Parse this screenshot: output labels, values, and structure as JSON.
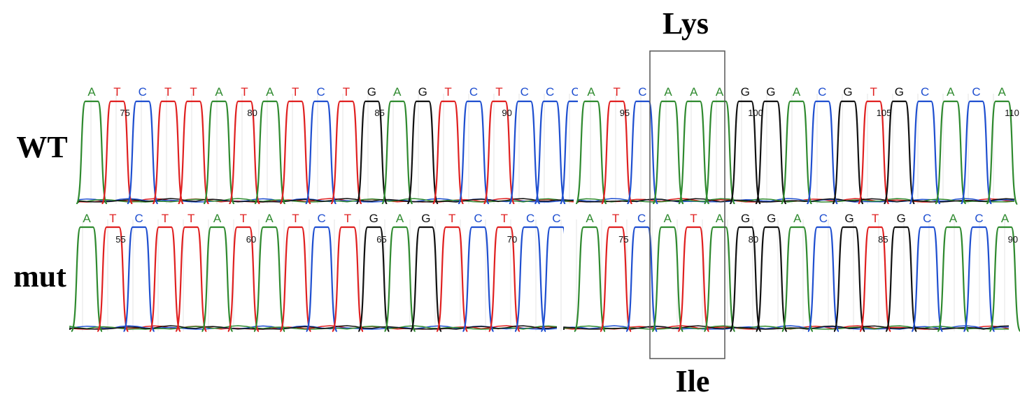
{
  "header": {
    "top_label": "Lys",
    "bottom_label": "Ile"
  },
  "base_colors": {
    "A": "#2f8a2f",
    "T": "#e02020",
    "C": "#1f4fd0",
    "G": "#111111"
  },
  "traces": [
    {
      "label": "WT",
      "segments": [
        {
          "bases": [
            "A",
            "T",
            "C",
            "T",
            "T",
            "A",
            "T",
            "A",
            "T",
            "C",
            "T",
            "G",
            "A",
            "G",
            "T",
            "C",
            "T",
            "C",
            "C",
            "C"
          ],
          "positions": [
            75,
            80,
            85,
            90
          ]
        },
        {
          "bases": [
            "A",
            "T",
            "C",
            "A",
            "A",
            "A",
            "G",
            "G",
            "A",
            "C",
            "G",
            "T",
            "G",
            "C",
            "A",
            "C",
            "A"
          ],
          "positions": [
            95,
            100,
            105,
            110
          ]
        }
      ]
    },
    {
      "label": "mut",
      "segments": [
        {
          "bases": [
            "A",
            "T",
            "C",
            "T",
            "T",
            "A",
            "T",
            "A",
            "T",
            "C",
            "T",
            "G",
            "A",
            "G",
            "T",
            "C",
            "T",
            "C",
            "C"
          ],
          "positions": [
            55,
            60,
            65,
            70
          ]
        },
        {
          "bases": [
            "A",
            "T",
            "C",
            "A",
            "T",
            "A",
            "G",
            "G",
            "A",
            "C",
            "G",
            "T",
            "G",
            "C",
            "A",
            "C",
            "A"
          ],
          "positions": [
            75,
            80,
            85,
            90
          ]
        }
      ]
    }
  ]
}
